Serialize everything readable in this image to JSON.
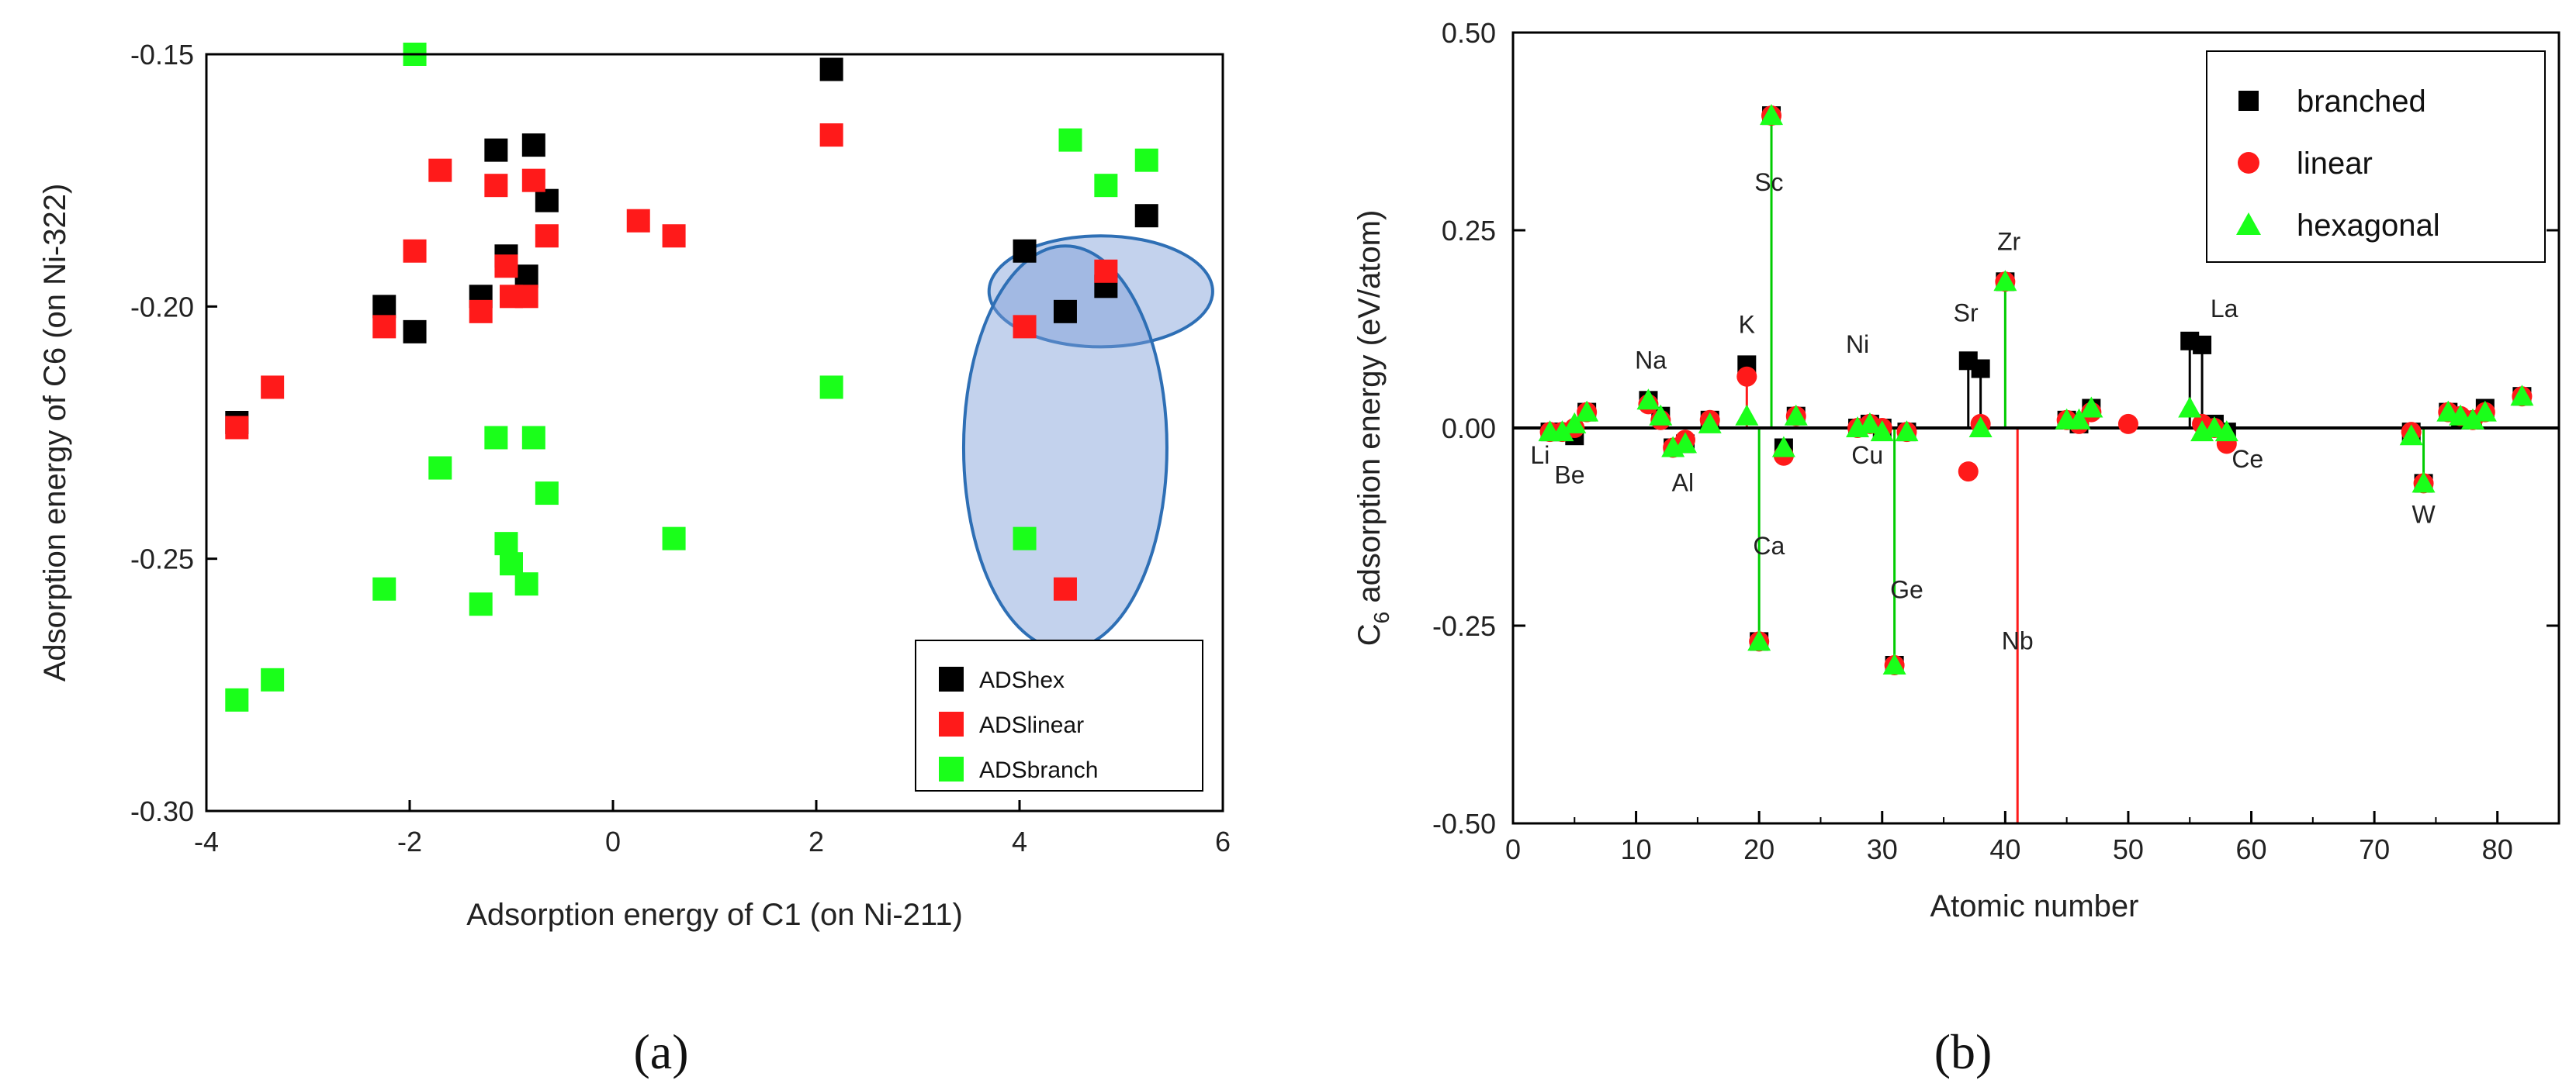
{
  "panel_labels": {
    "a": "(a)",
    "b": "(b)"
  },
  "colors": {
    "black": "#000000",
    "red": "#ff1a1a",
    "green": "#1aff1a",
    "green_line": "#00cc00",
    "ellipse_fill": "#7b9bd6",
    "ellipse_stroke": "#2e6fb5"
  },
  "chart_data": [
    {
      "type": "scatter",
      "xlabel": "Adsorption energy of C1 (on Ni-211)",
      "ylabel": "Adsorption energy of C6 (on Ni-322)",
      "xlim": [
        -4,
        6
      ],
      "ylim": [
        -0.3,
        -0.15
      ],
      "xticks": [
        -4,
        -2,
        0,
        2,
        4,
        6
      ],
      "xtick_labels": [
        "-4",
        "-2",
        "0",
        "2",
        "4",
        "6"
      ],
      "yticks": [
        -0.3,
        -0.25,
        -0.2,
        -0.15
      ],
      "ytick_labels": [
        "-0.30",
        "-0.25",
        "-0.20",
        "-0.15"
      ],
      "legend_position": "bottom-right",
      "highlight_ellipses": [
        {
          "cx": 4.8,
          "cy": -0.197,
          "rx": 1.1,
          "ry": 0.011
        },
        {
          "cx": 4.45,
          "cy": -0.228,
          "rx": 1.0,
          "ry": 0.04
        }
      ],
      "series": [
        {
          "name": "ADShex",
          "color": "#000000",
          "points": [
            [
              -3.7,
              -0.223
            ],
            [
              -2.25,
              -0.2
            ],
            [
              -1.95,
              -0.205
            ],
            [
              -1.3,
              -0.198
            ],
            [
              -1.15,
              -0.169
            ],
            [
              -1.05,
              -0.19
            ],
            [
              -0.85,
              -0.194
            ],
            [
              -0.78,
              -0.168
            ],
            [
              -0.65,
              -0.179
            ],
            [
              2.15,
              -0.153
            ],
            [
              4.05,
              -0.189
            ],
            [
              4.45,
              -0.201
            ],
            [
              4.85,
              -0.196
            ],
            [
              5.25,
              -0.182
            ]
          ]
        },
        {
          "name": "ADSlinear",
          "color": "#ff1a1a",
          "points": [
            [
              -3.7,
              -0.224
            ],
            [
              -3.35,
              -0.216
            ],
            [
              -2.25,
              -0.204
            ],
            [
              -1.95,
              -0.189
            ],
            [
              -1.7,
              -0.173
            ],
            [
              -1.3,
              -0.201
            ],
            [
              -1.15,
              -0.176
            ],
            [
              -1.05,
              -0.192
            ],
            [
              -1.0,
              -0.198
            ],
            [
              -0.85,
              -0.198
            ],
            [
              -0.78,
              -0.175
            ],
            [
              -0.65,
              -0.186
            ],
            [
              0.25,
              -0.183
            ],
            [
              0.6,
              -0.186
            ],
            [
              2.15,
              -0.166
            ],
            [
              4.05,
              -0.204
            ],
            [
              4.45,
              -0.256
            ],
            [
              4.85,
              -0.193
            ]
          ]
        },
        {
          "name": "ADSbranch",
          "color": "#1aff1a",
          "points": [
            [
              -3.7,
              -0.278
            ],
            [
              -3.35,
              -0.274
            ],
            [
              -2.25,
              -0.256
            ],
            [
              -1.95,
              -0.15
            ],
            [
              -1.7,
              -0.232
            ],
            [
              -1.3,
              -0.259
            ],
            [
              -1.15,
              -0.226
            ],
            [
              -1.05,
              -0.247
            ],
            [
              -1.0,
              -0.251
            ],
            [
              -0.85,
              -0.255
            ],
            [
              -0.78,
              -0.226
            ],
            [
              -0.65,
              -0.237
            ],
            [
              0.6,
              -0.246
            ],
            [
              2.15,
              -0.216
            ],
            [
              4.05,
              -0.246
            ],
            [
              4.5,
              -0.167
            ],
            [
              4.85,
              -0.176
            ],
            [
              5.25,
              -0.171
            ]
          ]
        }
      ]
    },
    {
      "type": "scatter",
      "xlabel": "Atomic number",
      "ylabel": "C6 adsorption energy (eV/atom)",
      "ylabel_main": "C",
      "ylabel_sub": "6",
      "ylabel_rest": " adsorption energy (eV/atom)",
      "xlim": [
        0,
        85
      ],
      "ylim": [
        -0.5,
        0.5
      ],
      "xticks": [
        0,
        10,
        20,
        30,
        40,
        50,
        60,
        70,
        80
      ],
      "xtick_labels": [
        "0",
        "10",
        "20",
        "30",
        "40",
        "50",
        "60",
        "70",
        "80"
      ],
      "yticks": [
        -0.5,
        -0.25,
        0.0,
        0.25,
        0.5
      ],
      "ytick_labels": [
        "-0.50",
        "-0.25",
        "0.00",
        "0.25",
        "0.50"
      ],
      "legend_position": "top-right",
      "series": [
        {
          "name": "branched",
          "marker": "square",
          "color": "#000000",
          "points": [
            [
              3,
              -0.005
            ],
            [
              4,
              -0.005
            ],
            [
              5,
              -0.01
            ],
            [
              6,
              0.02
            ],
            [
              11,
              0.035
            ],
            [
              12,
              0.015
            ],
            [
              13,
              -0.025
            ],
            [
              14,
              -0.02
            ],
            [
              16,
              0.01
            ],
            [
              19,
              0.08
            ],
            [
              20,
              -0.27
            ],
            [
              21,
              0.395
            ],
            [
              22,
              -0.025
            ],
            [
              23,
              0.015
            ],
            [
              28,
              0.0
            ],
            [
              29,
              0.005
            ],
            [
              30,
              0.0
            ],
            [
              31,
              -0.3
            ],
            [
              32,
              -0.005
            ],
            [
              37,
              0.085
            ],
            [
              38,
              0.075
            ],
            [
              40,
              0.185
            ],
            [
              45,
              0.01
            ],
            [
              46,
              0.005
            ],
            [
              47,
              0.025
            ],
            [
              55,
              0.11
            ],
            [
              56,
              0.105
            ],
            [
              57,
              0.005
            ],
            [
              58,
              -0.005
            ],
            [
              73,
              -0.005
            ],
            [
              74,
              -0.07
            ],
            [
              76,
              0.02
            ],
            [
              77,
              0.01
            ],
            [
              78,
              0.01
            ],
            [
              79,
              0.025
            ],
            [
              82,
              0.04
            ]
          ]
        },
        {
          "name": "linear",
          "marker": "circle",
          "color": "#ff1a1a",
          "points": [
            [
              3,
              -0.005
            ],
            [
              4,
              -0.005
            ],
            [
              5,
              0.0
            ],
            [
              6,
              0.02
            ],
            [
              11,
              0.03
            ],
            [
              12,
              0.01
            ],
            [
              13,
              -0.025
            ],
            [
              14,
              -0.015
            ],
            [
              16,
              0.01
            ],
            [
              19,
              0.065
            ],
            [
              20,
              -0.27
            ],
            [
              21,
              0.395
            ],
            [
              22,
              -0.035
            ],
            [
              23,
              0.015
            ],
            [
              28,
              0.0
            ],
            [
              29,
              0.005
            ],
            [
              30,
              0.0
            ],
            [
              31,
              -0.3
            ],
            [
              32,
              -0.005
            ],
            [
              37,
              -0.055
            ],
            [
              38,
              0.005
            ],
            [
              40,
              0.185
            ],
            [
              45,
              0.01
            ],
            [
              46,
              0.005
            ],
            [
              47,
              0.02
            ],
            [
              50,
              0.005
            ],
            [
              56,
              0.005
            ],
            [
              57,
              0.0
            ],
            [
              58,
              -0.02
            ],
            [
              73,
              -0.005
            ],
            [
              74,
              -0.07
            ],
            [
              76,
              0.02
            ],
            [
              77,
              0.015
            ],
            [
              78,
              0.01
            ],
            [
              79,
              0.02
            ],
            [
              82,
              0.04
            ]
          ]
        },
        {
          "name": "hexagonal",
          "marker": "triangle",
          "color": "#1aff1a",
          "points": [
            [
              3,
              -0.005
            ],
            [
              4,
              -0.005
            ],
            [
              5,
              0.005
            ],
            [
              6,
              0.02
            ],
            [
              11,
              0.035
            ],
            [
              12,
              0.015
            ],
            [
              13,
              -0.025
            ],
            [
              14,
              -0.02
            ],
            [
              16,
              0.005
            ],
            [
              19,
              0.015
            ],
            [
              20,
              -0.27
            ],
            [
              21,
              0.395
            ],
            [
              22,
              -0.025
            ],
            [
              23,
              0.015
            ],
            [
              28,
              0.0
            ],
            [
              29,
              0.005
            ],
            [
              30,
              -0.005
            ],
            [
              31,
              -0.3
            ],
            [
              32,
              -0.005
            ],
            [
              38,
              0.0
            ],
            [
              40,
              0.185
            ],
            [
              45,
              0.01
            ],
            [
              46,
              0.01
            ],
            [
              47,
              0.025
            ],
            [
              55,
              0.025
            ],
            [
              56,
              -0.005
            ],
            [
              57,
              0.0
            ],
            [
              58,
              -0.005
            ],
            [
              73,
              -0.01
            ],
            [
              74,
              -0.07
            ],
            [
              76,
              0.02
            ],
            [
              77,
              0.015
            ],
            [
              78,
              0.01
            ],
            [
              79,
              0.02
            ],
            [
              82,
              0.04
            ]
          ]
        }
      ],
      "drop_lines": [
        {
          "x": 21,
          "y": 0.395,
          "color": "green"
        },
        {
          "x": 20,
          "y": -0.27,
          "color": "green"
        },
        {
          "x": 31,
          "y": -0.3,
          "color": "green"
        },
        {
          "x": 40,
          "y": 0.185,
          "color": "green"
        },
        {
          "x": 41,
          "y": -0.5,
          "color": "red"
        },
        {
          "x": 19,
          "y": 0.08,
          "color": "red"
        },
        {
          "x": 37,
          "y": 0.085,
          "color": "black"
        },
        {
          "x": 38,
          "y": 0.075,
          "color": "black"
        },
        {
          "x": 55,
          "y": 0.11,
          "color": "black"
        },
        {
          "x": 56,
          "y": 0.105,
          "color": "black"
        },
        {
          "x": 74,
          "y": -0.07,
          "color": "green"
        }
      ],
      "annotations": [
        {
          "text": "Li",
          "x": 2.2,
          "y": -0.045
        },
        {
          "text": "Be",
          "x": 4.6,
          "y": -0.07
        },
        {
          "text": "Na",
          "x": 11.2,
          "y": 0.075
        },
        {
          "text": "Al",
          "x": 13.8,
          "y": -0.08
        },
        {
          "text": "K",
          "x": 19.0,
          "y": 0.12
        },
        {
          "text": "Sc",
          "x": 20.8,
          "y": 0.3
        },
        {
          "text": "Ca",
          "x": 20.8,
          "y": -0.16
        },
        {
          "text": "Ni",
          "x": 28.0,
          "y": 0.095
        },
        {
          "text": "Cu",
          "x": 28.8,
          "y": -0.045
        },
        {
          "text": "Ge",
          "x": 32.0,
          "y": -0.215
        },
        {
          "text": "Sr",
          "x": 36.8,
          "y": 0.135
        },
        {
          "text": "Zr",
          "x": 40.3,
          "y": 0.225
        },
        {
          "text": "Nb",
          "x": 41.0,
          "y": -0.28
        },
        {
          "text": "La",
          "x": 57.8,
          "y": 0.14
        },
        {
          "text": "Ce",
          "x": 59.7,
          "y": -0.05
        },
        {
          "text": "W",
          "x": 74.0,
          "y": -0.12
        }
      ]
    }
  ]
}
